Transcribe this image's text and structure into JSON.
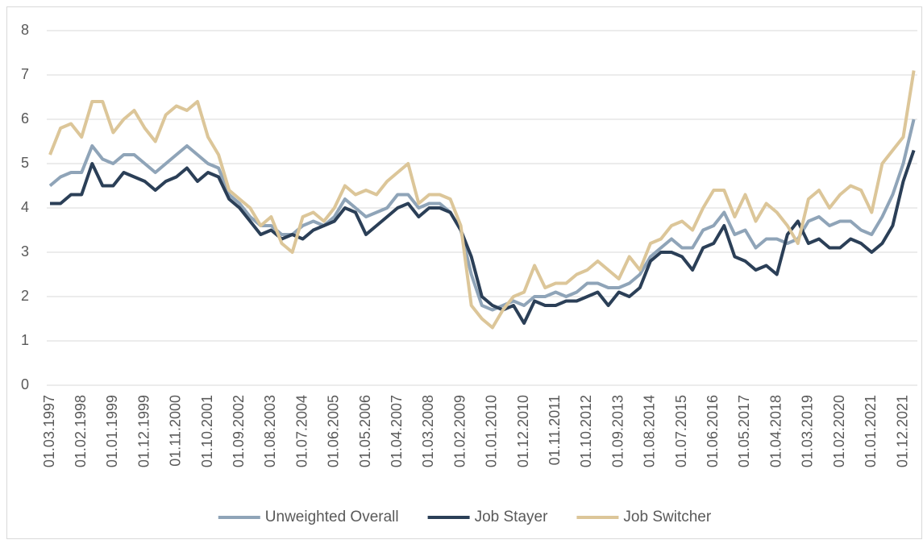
{
  "chart_data": {
    "type": "line",
    "categories": [
      "01.03.1997",
      null,
      null,
      "01.02.1998",
      null,
      null,
      "01.01.1999",
      null,
      null,
      "01.12.1999",
      null,
      null,
      "01.11.2000",
      null,
      null,
      "01.10.2001",
      null,
      null,
      "01.09.2002",
      null,
      null,
      "01.08.2003",
      null,
      null,
      "01.07.2004",
      null,
      null,
      "01.06.2005",
      null,
      null,
      "01.05.2006",
      null,
      null,
      "01.04.2007",
      null,
      null,
      "01.03.2008",
      null,
      null,
      "01.02.2009",
      null,
      null,
      "01.01.2010",
      null,
      null,
      "01.12.2010",
      null,
      null,
      "01.11.2011",
      null,
      null,
      "01.10.2012",
      null,
      null,
      "01.09.2013",
      null,
      null,
      "01.08.2014",
      null,
      null,
      "01.07.2015",
      null,
      null,
      "01.06.2016",
      null,
      null,
      "01.05.2017",
      null,
      null,
      "01.04.2018",
      null,
      null,
      "01.03.2019",
      null,
      null,
      "01.02.2020",
      null,
      null,
      "01.01.2021",
      null,
      null,
      "01.12.2021",
      null
    ],
    "series": [
      {
        "name": "Unweighted Overall",
        "color": "#8fa4b8",
        "values": [
          4.5,
          4.7,
          4.8,
          4.8,
          5.4,
          5.1,
          5.0,
          5.2,
          5.2,
          5.0,
          4.8,
          5.0,
          5.2,
          5.4,
          5.2,
          5.0,
          4.9,
          4.3,
          4.1,
          3.8,
          3.6,
          3.6,
          3.4,
          3.4,
          3.6,
          3.7,
          3.6,
          3.8,
          4.2,
          4.0,
          3.8,
          3.9,
          4.0,
          4.3,
          4.3,
          4.0,
          4.1,
          4.1,
          3.9,
          3.5,
          2.5,
          1.8,
          1.7,
          1.8,
          1.9,
          1.8,
          2.0,
          2.0,
          2.1,
          2.0,
          2.1,
          2.3,
          2.3,
          2.2,
          2.2,
          2.3,
          2.5,
          2.9,
          3.1,
          3.3,
          3.1,
          3.1,
          3.5,
          3.6,
          3.9,
          3.4,
          3.5,
          3.1,
          3.3,
          3.3,
          3.2,
          3.3,
          3.7,
          3.8,
          3.6,
          3.7,
          3.7,
          3.5,
          3.4,
          3.8,
          4.3,
          5.0,
          6.0
        ]
      },
      {
        "name": "Job Stayer",
        "color": "#2b3f57",
        "values": [
          4.1,
          4.1,
          4.3,
          4.3,
          5.0,
          4.5,
          4.5,
          4.8,
          4.7,
          4.6,
          4.4,
          4.6,
          4.7,
          4.9,
          4.6,
          4.8,
          4.7,
          4.2,
          4.0,
          3.7,
          3.4,
          3.5,
          3.3,
          3.4,
          3.3,
          3.5,
          3.6,
          3.7,
          4.0,
          3.9,
          3.4,
          3.6,
          3.8,
          4.0,
          4.1,
          3.8,
          4.0,
          4.0,
          3.9,
          3.5,
          2.9,
          2.0,
          1.8,
          1.7,
          1.8,
          1.4,
          1.9,
          1.8,
          1.8,
          1.9,
          1.9,
          2.0,
          2.1,
          1.8,
          2.1,
          2.0,
          2.2,
          2.8,
          3.0,
          3.0,
          2.9,
          2.6,
          3.1,
          3.2,
          3.6,
          2.9,
          2.8,
          2.6,
          2.7,
          2.5,
          3.4,
          3.7,
          3.2,
          3.3,
          3.1,
          3.1,
          3.3,
          3.2,
          3.0,
          3.2,
          3.6,
          4.6,
          5.3
        ]
      },
      {
        "name": "Job Switcher",
        "color": "#dcc699",
        "values": [
          5.2,
          5.8,
          5.9,
          5.6,
          6.4,
          6.4,
          5.7,
          6.0,
          6.2,
          5.8,
          5.5,
          6.1,
          6.3,
          6.2,
          6.4,
          5.6,
          5.2,
          4.4,
          4.2,
          4.0,
          3.6,
          3.8,
          3.2,
          3.0,
          3.8,
          3.9,
          3.7,
          4.0,
          4.5,
          4.3,
          4.4,
          4.3,
          4.6,
          4.8,
          5.0,
          4.1,
          4.3,
          4.3,
          4.2,
          3.6,
          1.8,
          1.5,
          1.3,
          1.7,
          2.0,
          2.1,
          2.7,
          2.2,
          2.3,
          2.3,
          2.5,
          2.6,
          2.8,
          2.6,
          2.4,
          2.9,
          2.6,
          3.2,
          3.3,
          3.6,
          3.7,
          3.5,
          4.0,
          4.4,
          4.4,
          3.8,
          4.3,
          3.7,
          4.1,
          3.9,
          3.6,
          3.2,
          4.2,
          4.4,
          4.0,
          4.3,
          4.5,
          4.4,
          3.9,
          5.0,
          5.3,
          5.6,
          7.1
        ]
      }
    ],
    "ylim": [
      0,
      8
    ],
    "yticks": [
      0,
      1,
      2,
      3,
      4,
      5,
      6,
      7,
      8
    ],
    "grid": true,
    "legend": "bottom"
  }
}
